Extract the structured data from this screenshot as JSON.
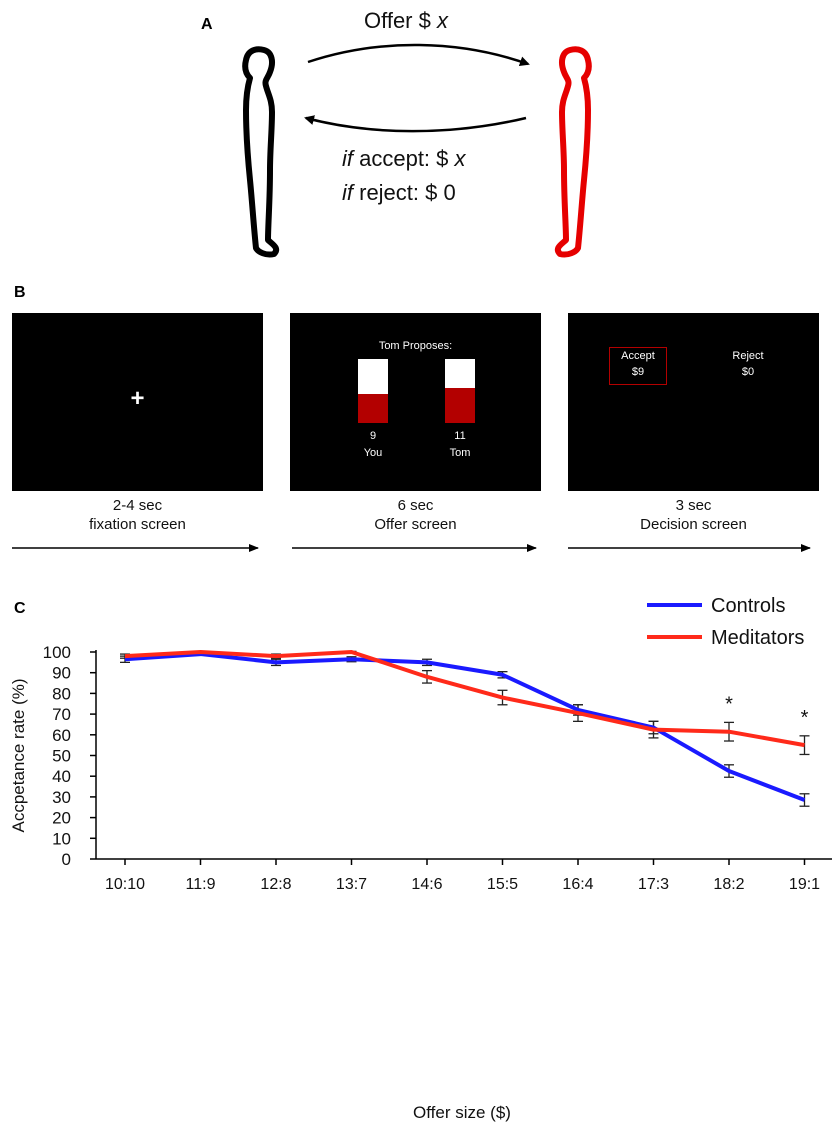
{
  "panelA": {
    "letter": "A",
    "offer_word": "Offer $ ",
    "offer_var": "x",
    "accept_if": "if",
    "accept_text": " accept: $ ",
    "accept_var": "x",
    "reject_if": "if",
    "reject_text": " reject: $ 0"
  },
  "panelB": {
    "letter": "B",
    "screens": [
      {
        "duration": "2-4 sec",
        "name": "fixation screen",
        "symbol": "+"
      },
      {
        "duration": "6 sec",
        "name": "Offer screen",
        "header": "Tom Proposes:",
        "bars": [
          {
            "value": "9",
            "who": "You",
            "fraction": 0.45
          },
          {
            "value": "11",
            "who": "Tom",
            "fraction": 0.55
          }
        ]
      },
      {
        "duration": "3 sec",
        "name": "Decision screen",
        "options": [
          {
            "label": "Accept",
            "amount": "$9"
          },
          {
            "label": "Reject",
            "amount": "$0"
          }
        ]
      }
    ]
  },
  "panelC": {
    "letter": "C",
    "significance_marker": "*"
  },
  "chart_data": {
    "type": "line",
    "title": "",
    "xlabel": "Offer size ($)",
    "ylabel": "Accpetance rate (%)",
    "ylim": [
      0,
      100
    ],
    "yticks": [
      0,
      10,
      20,
      30,
      40,
      50,
      60,
      70,
      80,
      90,
      100
    ],
    "categories": [
      "10:10",
      "11:9",
      "12:8",
      "13:7",
      "14:6",
      "15:5",
      "16:4",
      "17:3",
      "18:2",
      "19:1"
    ],
    "legend_position": "top-right",
    "grid": false,
    "significant": [
      "18:2",
      "19:1"
    ],
    "series": [
      {
        "name": "Controls",
        "color": "#1a1aff",
        "values": [
          96.5,
          99,
          95,
          96.5,
          95,
          89,
          72,
          63.5,
          42.5,
          28.5
        ],
        "errors": [
          1.5,
          0.5,
          1.5,
          1.2,
          1.5,
          1.5,
          2.5,
          3,
          3,
          3
        ]
      },
      {
        "name": "Meditators",
        "color": "#ff2a1a",
        "values": [
          98,
          100,
          98,
          100,
          88,
          78,
          70.5,
          62.5,
          61.5,
          55
        ],
        "errors": [
          1,
          0.3,
          1,
          0.3,
          3,
          3.5,
          4,
          4,
          4.5,
          4.5
        ]
      }
    ]
  }
}
